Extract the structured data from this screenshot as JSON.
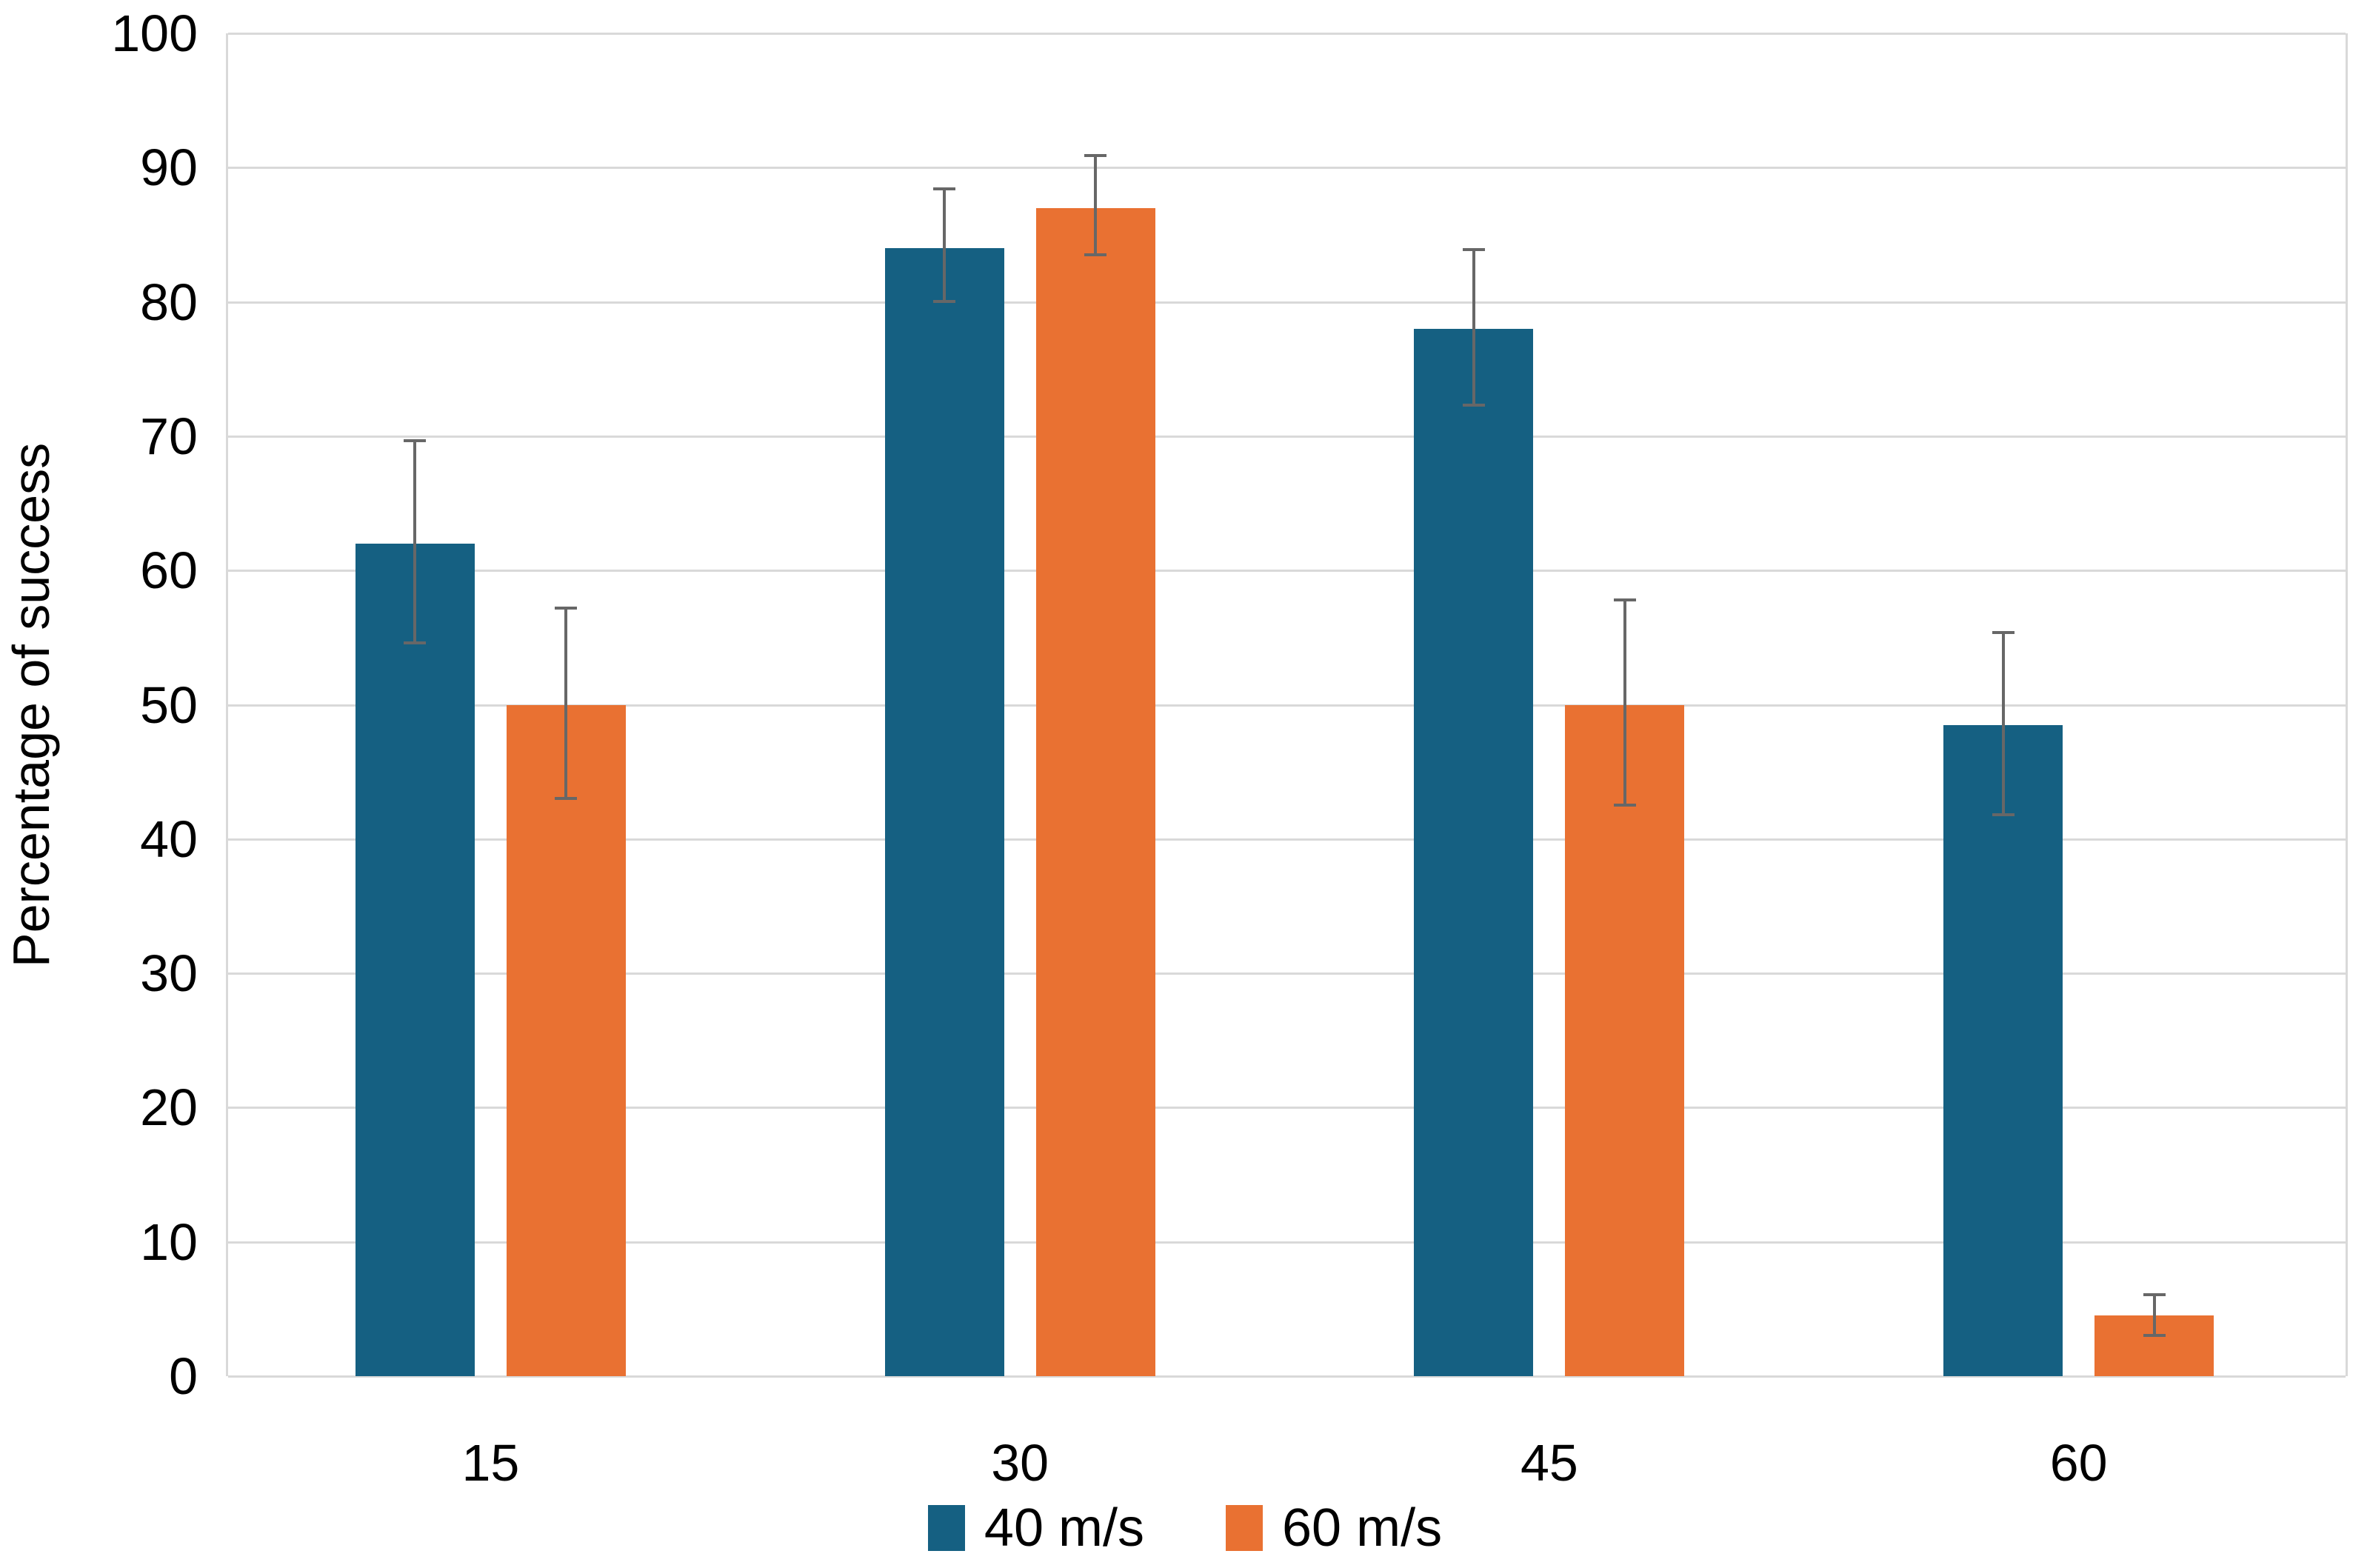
{
  "chart_data": {
    "type": "bar",
    "categories": [
      "15",
      "30",
      "45",
      "60"
    ],
    "series": [
      {
        "name": "40 m/s",
        "color": "#156082",
        "values": [
          62,
          84,
          78,
          48.5
        ],
        "error_low": [
          54.5,
          79.9,
          72.2,
          41.7
        ],
        "error_high": [
          69.8,
          88.5,
          84.0,
          55.5
        ]
      },
      {
        "name": "60 m/s",
        "color": "#E97132",
        "values": [
          50,
          87,
          50,
          4.5
        ],
        "error_low": [
          42.9,
          83.4,
          42.4,
          2.9
        ],
        "error_high": [
          57.3,
          91.0,
          57.9,
          6.2
        ]
      }
    ],
    "title": "",
    "xlabel": "",
    "ylabel": "Percentage of success",
    "ylim": [
      0,
      100
    ],
    "ytick_step": 10,
    "grid": true,
    "gridline_color": "#d9d9d9",
    "error_bar_color": "#676767",
    "legend_position": "bottom"
  }
}
